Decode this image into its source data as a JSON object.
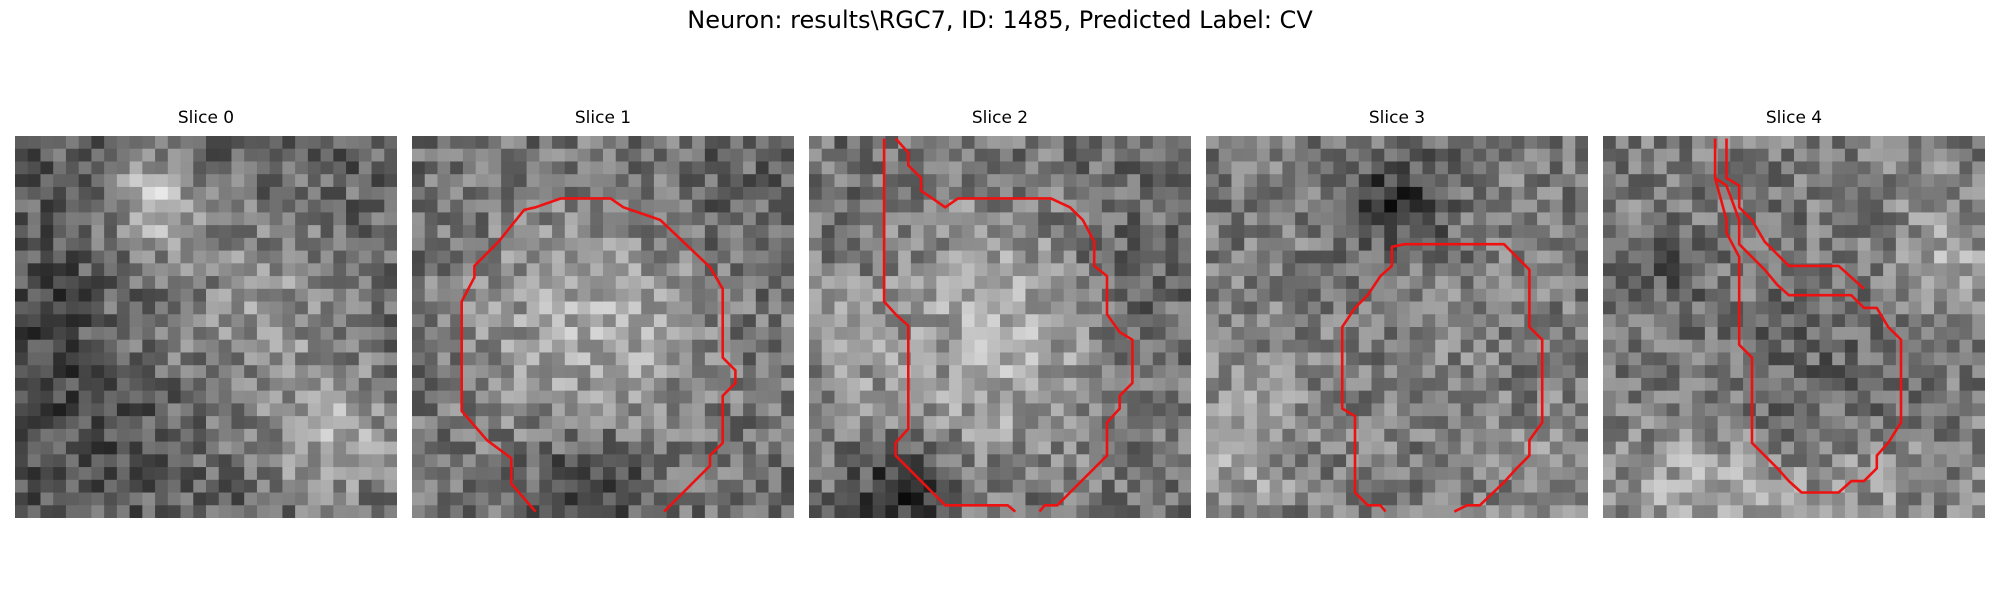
{
  "figure": {
    "title": "Neuron: results\\RGC7, ID: 1485, Predicted Label: CV",
    "contour_color": "#ee1111",
    "slices": [
      {
        "label": "Slice 0",
        "has_contour": false
      },
      {
        "label": "Slice 1",
        "has_contour": true
      },
      {
        "label": "Slice 2",
        "has_contour": true
      },
      {
        "label": "Slice 3",
        "has_contour": true
      },
      {
        "label": "Slice 4",
        "has_contour": true
      }
    ]
  }
}
